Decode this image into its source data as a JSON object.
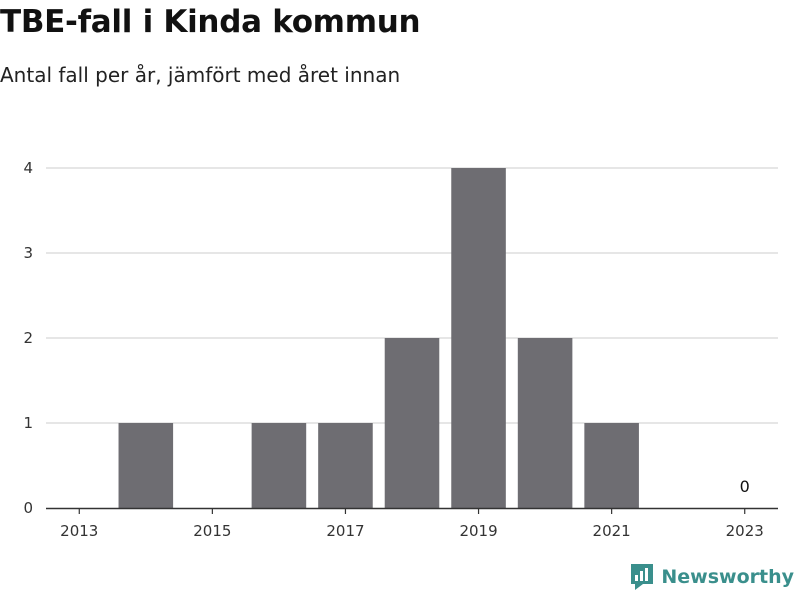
{
  "title": "TBE-fall i Kinda kommun",
  "subtitle": "Antal fall per år, jämfört med året innan",
  "brand": {
    "name": "Newsworthy",
    "icon": "newsworthy-logo-icon",
    "color": "#3a8f8c"
  },
  "colors": {
    "bar": "#6e6d72",
    "grid": "#dddddd",
    "axis": "#333333"
  },
  "chart_data": {
    "type": "bar",
    "categories": [
      "2013",
      "2014",
      "2015",
      "2016",
      "2017",
      "2018",
      "2019",
      "2020",
      "2021",
      "2022",
      "2023"
    ],
    "values": [
      0,
      1,
      0,
      1,
      1,
      2,
      4,
      2,
      1,
      0,
      0
    ],
    "x_tick_labels": [
      "2013",
      "2015",
      "2017",
      "2019",
      "2021",
      "2023"
    ],
    "y_ticks": [
      0,
      1,
      2,
      3,
      4
    ],
    "ylim": [
      0,
      4
    ],
    "data_labels": [
      {
        "category": "2023",
        "text": "0"
      }
    ],
    "grid": true,
    "legend": "none",
    "xlabel": "",
    "ylabel": ""
  }
}
